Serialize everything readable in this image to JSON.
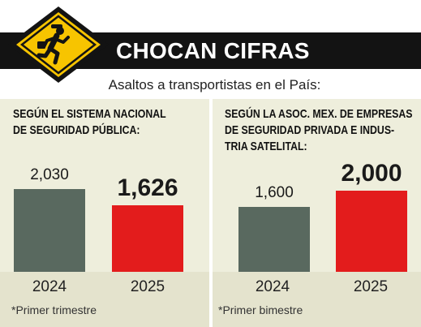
{
  "header": {
    "title": "CHOCAN CIFRAS",
    "subtitle": "Asaltos a transportistas en el País:"
  },
  "icons": {
    "sign": "running-thief-warning-sign-icon"
  },
  "colors": {
    "bar_2024": "#59695f",
    "bar_2025": "#e31c1c",
    "title_band": "#131313",
    "sign_yellow": "#f7c400",
    "panel_bg": "#eeeedc"
  },
  "chart_data": [
    {
      "type": "bar",
      "title": "SEGÚN EL SISTEMA NACIONAL DE SEGURIDAD PÚBLICA:",
      "title_lines": [
        "SEGÚN EL SISTEMA NACIONAL",
        "DE SEGURIDAD PÚBLICA:"
      ],
      "categories": [
        "2024",
        "2025"
      ],
      "values": [
        2030,
        1626
      ],
      "value_labels": [
        "2,030",
        "1,626"
      ],
      "footnote": "*Primer trimestre"
    },
    {
      "type": "bar",
      "title": "SEGÚN LA ASOC. MEX. DE EMPRESAS DE SEGURIDAD PRIVADA E INDUSTRIA SATELITAL:",
      "title_lines": [
        "SEGÚN LA ASOC. MEX. DE EMPRESAS",
        "DE SEGURIDAD PRIVADA E INDUS-",
        "TRIA SATELITAL:"
      ],
      "categories": [
        "2024",
        "2025"
      ],
      "values": [
        1600,
        2000
      ],
      "value_labels": [
        "1,600",
        "2,000"
      ],
      "footnote": "*Primer bimestre"
    }
  ]
}
